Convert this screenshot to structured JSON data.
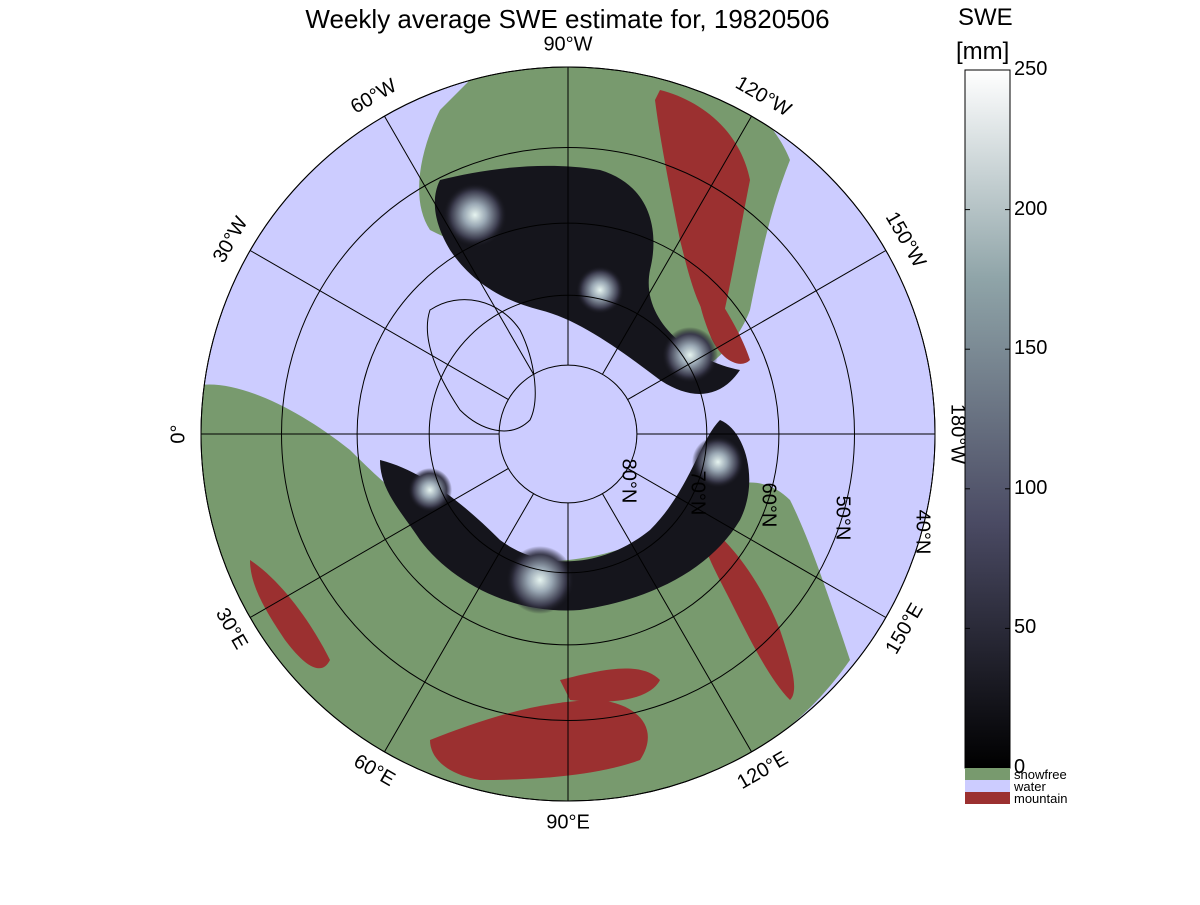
{
  "title": "Weekly average SWE estimate for, 19820506",
  "colorbar": {
    "title": "SWE",
    "unit": "[mm]",
    "range": [
      0,
      250
    ],
    "ticks": [
      "0",
      "50",
      "100",
      "150",
      "200",
      "250"
    ],
    "tick_values": [
      0,
      50,
      100,
      150,
      200,
      250
    ],
    "colormap": "bone",
    "categories": [
      {
        "name": "snowfree",
        "color": "#789a6e"
      },
      {
        "name": "water",
        "color": "#ccccff"
      },
      {
        "name": "mountain",
        "color": "#9b3030"
      }
    ]
  },
  "map": {
    "projection": "north polar stereographic",
    "water_color": "#ccccff",
    "land_color": "#789a6e",
    "mountain_color": "#9b3030",
    "snow_dark_color": "#15151c",
    "snow_bright_color": "#d8eae6",
    "longitude_labels": [
      {
        "text": "90°W",
        "deg": 0
      },
      {
        "text": "120°W",
        "deg": 30
      },
      {
        "text": "150°W",
        "deg": 60
      },
      {
        "text": "180°W",
        "deg": 90
      },
      {
        "text": "150°E",
        "deg": 120
      },
      {
        "text": "120°E",
        "deg": 150
      },
      {
        "text": "90°E",
        "deg": 180
      },
      {
        "text": "60°E",
        "deg": 210
      },
      {
        "text": "30°E",
        "deg": 240
      },
      {
        "text": "0°",
        "deg": 270
      },
      {
        "text": "30°W",
        "deg": 300
      },
      {
        "text": "60°W",
        "deg": 330
      }
    ],
    "latitude_labels": [
      "80°N",
      "70°N",
      "60°N",
      "50°N",
      "40°N"
    ],
    "latitude_circles": [
      80,
      70,
      60,
      50,
      40
    ]
  }
}
